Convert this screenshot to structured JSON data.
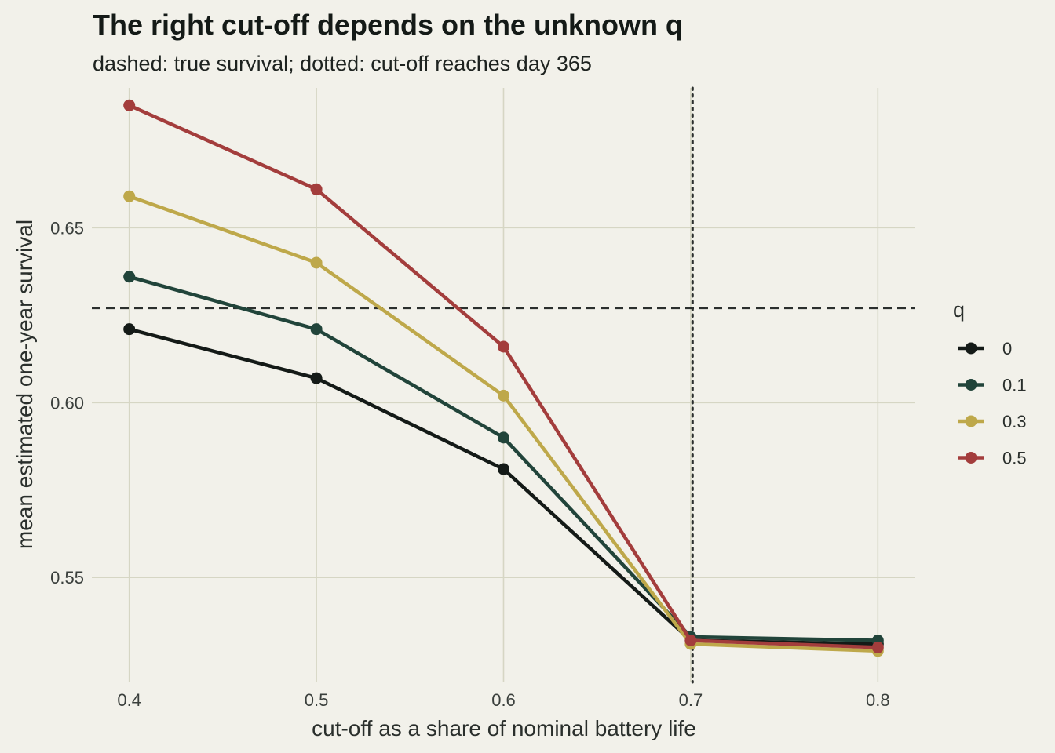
{
  "chart_data": {
    "type": "line",
    "title": "The right cut-off depends on the unknown q",
    "subtitle": "dashed: true survival; dotted: cut-off reaches day 365",
    "xlabel": "cut-off as a share of nominal battery life",
    "ylabel": "mean estimated one-year survival",
    "x": [
      0.4,
      0.5,
      0.6,
      0.7,
      0.8
    ],
    "x_ticks": [
      0.4,
      0.5,
      0.6,
      0.7,
      0.8
    ],
    "x_tick_labels": [
      "0.4",
      "0.5",
      "0.6",
      "0.7",
      "0.8"
    ],
    "y_ticks": [
      0.55,
      0.6,
      0.65
    ],
    "y_tick_labels": [
      "0.55",
      "0.60",
      "0.65"
    ],
    "xlim": [
      0.38,
      0.82
    ],
    "ylim": [
      0.52,
      0.69
    ],
    "grid": true,
    "legend_title": "q",
    "legend_position": "right",
    "reference_lines": {
      "true_survival_y": 0.627,
      "day365_cutoff_x": 0.701
    },
    "series": [
      {
        "name": "0",
        "color": "#141a17",
        "values": [
          0.621,
          0.607,
          0.581,
          0.532,
          0.531
        ]
      },
      {
        "name": "0.1",
        "color": "#21443a",
        "values": [
          0.636,
          0.621,
          0.59,
          0.533,
          0.532
        ]
      },
      {
        "name": "0.3",
        "color": "#bea84a",
        "values": [
          0.659,
          0.64,
          0.602,
          0.531,
          0.529
        ]
      },
      {
        "name": "0.5",
        "color": "#a33d3c",
        "values": [
          0.685,
          0.661,
          0.616,
          0.532,
          0.53
        ]
      }
    ]
  }
}
